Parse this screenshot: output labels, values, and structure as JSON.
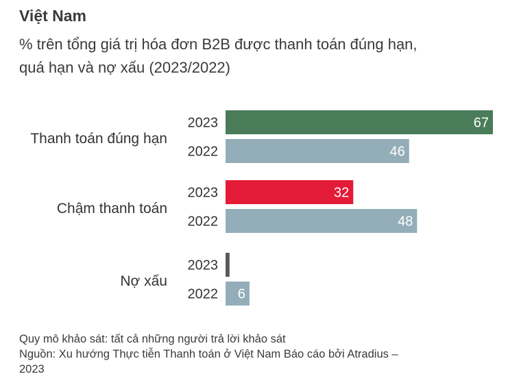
{
  "chart_data": {
    "type": "bar",
    "orientation": "horizontal",
    "title": "Việt Nam",
    "subtitle_lines": [
      "% trên tổng giá trị hóa đơn B2B được thanh toán đúng hạn,",
      "quá hạn và nợ xấu (2023/2022)"
    ],
    "categories": [
      "Thanh toán đúng hạn",
      "Chậm thanh toán",
      "Nợ xấu"
    ],
    "series": [
      {
        "name": "2023",
        "values": [
          67,
          32,
          1
        ],
        "colors": [
          "#4a7c59",
          "#e31b36",
          "#595959"
        ]
      },
      {
        "name": "2022",
        "values": [
          46,
          48,
          6
        ],
        "colors": [
          "#93aeb9",
          "#93aeb9",
          "#93aeb9"
        ]
      }
    ],
    "xlim": [
      0,
      67
    ],
    "grid": false,
    "legend": "none",
    "value_labels": true
  },
  "footer": {
    "scope": "Quy mô khảo sát: tất cả những người trả lời khảo sát",
    "source_line1": "Nguồn: Xu hướng Thực tiễn Thanh toán ở Việt Nam Báo cáo bởi Atradius –",
    "source_line2": "2023"
  }
}
